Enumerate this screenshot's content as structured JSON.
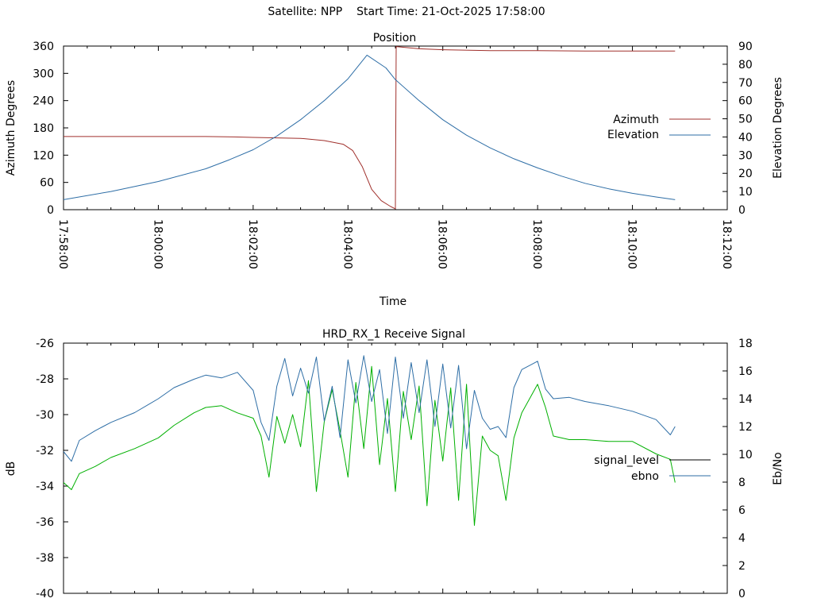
{
  "header": {
    "satellite": "Satellite: NPP",
    "start_time": "Start Time: 21-Oct-2025 17:58:00"
  },
  "colors": {
    "azimuth": "#a0302c",
    "elevation": "#2e6ea6",
    "signal_level": "#000000",
    "ebno": "#2e6ea6",
    "signal_trace": "#00b000",
    "axis": "#000000"
  },
  "chart_data": [
    {
      "type": "line",
      "title": "Position",
      "xlabel": "Time",
      "ylabel": "Azimuth Degrees",
      "y2label": "Elevation Degrees",
      "xlim": [
        "17:58:00",
        "18:12:00"
      ],
      "x_ticks": [
        "17:58:00",
        "18:00:00",
        "18:02:00",
        "18:04:00",
        "18:06:00",
        "18:08:00",
        "18:10:00",
        "18:12:00"
      ],
      "ylim": [
        0,
        360
      ],
      "y_ticks": [
        0,
        60,
        120,
        180,
        240,
        300,
        360
      ],
      "y2lim": [
        0,
        90
      ],
      "y2_ticks": [
        0,
        10,
        20,
        30,
        40,
        50,
        60,
        70,
        80,
        90
      ],
      "grid": false,
      "legend": "right",
      "series": [
        {
          "name": "Azimuth",
          "axis": "y",
          "points": [
            [
              "17:58:00",
              161
            ],
            [
              "17:59:00",
              161
            ],
            [
              "18:00:00",
              161
            ],
            [
              "18:01:00",
              161
            ],
            [
              "18:01:36",
              160
            ],
            [
              "18:02:00",
              159
            ],
            [
              "18:02:30",
              158
            ],
            [
              "18:03:00",
              157
            ],
            [
              "18:03:30",
              152
            ],
            [
              "18:03:54",
              144
            ],
            [
              "18:04:06",
              130
            ],
            [
              "18:04:18",
              95
            ],
            [
              "18:04:30",
              45
            ],
            [
              "18:04:42",
              20
            ],
            [
              "18:04:54",
              7
            ],
            [
              "18:05:00",
              2
            ],
            [
              "18:05:01",
              359
            ],
            [
              "18:05:30",
              354
            ],
            [
              "18:06:00",
              352
            ],
            [
              "18:07:00",
              350
            ],
            [
              "18:08:00",
              350
            ],
            [
              "18:09:00",
              349
            ],
            [
              "18:10:00",
              349
            ],
            [
              "18:10:54",
              349
            ]
          ]
        },
        {
          "name": "Elevation",
          "axis": "y2",
          "points": [
            [
              "17:58:00",
              5.5
            ],
            [
              "17:59:00",
              10
            ],
            [
              "18:00:00",
              15.5
            ],
            [
              "18:01:00",
              22.5
            ],
            [
              "18:01:30",
              27.5
            ],
            [
              "18:02:00",
              33
            ],
            [
              "18:02:30",
              40.5
            ],
            [
              "18:03:00",
              49.5
            ],
            [
              "18:03:30",
              60
            ],
            [
              "18:04:00",
              72
            ],
            [
              "18:04:24",
              85
            ],
            [
              "18:04:48",
              78
            ],
            [
              "18:05:00",
              71.5
            ],
            [
              "18:05:30",
              60
            ],
            [
              "18:06:00",
              49.5
            ],
            [
              "18:06:30",
              41
            ],
            [
              "18:07:00",
              34
            ],
            [
              "18:07:30",
              28
            ],
            [
              "18:08:00",
              23
            ],
            [
              "18:08:30",
              18.5
            ],
            [
              "18:09:00",
              14.5
            ],
            [
              "18:09:30",
              11.5
            ],
            [
              "18:10:00",
              9
            ],
            [
              "18:10:30",
              7
            ],
            [
              "18:10:54",
              5.5
            ]
          ]
        }
      ]
    },
    {
      "type": "line",
      "title": "HRD_RX_1 Receive Signal",
      "xlabel": "",
      "ylabel": "dB",
      "y2label": "Eb/No",
      "xlim": [
        "17:58:00",
        "18:12:00"
      ],
      "ylim": [
        -40,
        -26
      ],
      "y_ticks": [
        -40,
        -38,
        -36,
        -34,
        -32,
        -30,
        -28,
        -26
      ],
      "y2lim": [
        0,
        18
      ],
      "y2_ticks": [
        0,
        2,
        4,
        6,
        8,
        10,
        12,
        14,
        16,
        18
      ],
      "grid": false,
      "legend": "right",
      "series": [
        {
          "name": "signal_level",
          "axis": "y",
          "points": [
            [
              "17:58:00",
              -33.8
            ],
            [
              "17:58:10",
              -34.2
            ],
            [
              "17:58:20",
              -33.3
            ],
            [
              "17:58:40",
              -32.9
            ],
            [
              "17:59:00",
              -32.4
            ],
            [
              "17:59:30",
              -31.9
            ],
            [
              "18:00:00",
              -31.3
            ],
            [
              "18:00:20",
              -30.6
            ],
            [
              "18:00:45",
              -29.9
            ],
            [
              "18:01:00",
              -29.6
            ],
            [
              "18:01:20",
              -29.5
            ],
            [
              "18:01:40",
              -29.9
            ],
            [
              "18:02:00",
              -30.2
            ],
            [
              "18:02:10",
              -31.2
            ],
            [
              "18:02:20",
              -33.5
            ],
            [
              "18:02:30",
              -30.1
            ],
            [
              "18:02:40",
              -31.6
            ],
            [
              "18:02:50",
              -30.0
            ],
            [
              "18:03:00",
              -31.8
            ],
            [
              "18:03:10",
              -28.1
            ],
            [
              "18:03:20",
              -34.3
            ],
            [
              "18:03:30",
              -30.4
            ],
            [
              "18:03:40",
              -28.6
            ],
            [
              "18:03:50",
              -30.9
            ],
            [
              "18:04:00",
              -33.5
            ],
            [
              "18:04:10",
              -28.2
            ],
            [
              "18:04:20",
              -31.9
            ],
            [
              "18:04:30",
              -27.3
            ],
            [
              "18:04:40",
              -32.8
            ],
            [
              "18:04:50",
              -29.1
            ],
            [
              "18:05:00",
              -34.3
            ],
            [
              "18:05:10",
              -28.7
            ],
            [
              "18:05:20",
              -31.4
            ],
            [
              "18:05:30",
              -28.4
            ],
            [
              "18:05:40",
              -35.1
            ],
            [
              "18:05:50",
              -29.2
            ],
            [
              "18:06:00",
              -32.6
            ],
            [
              "18:06:10",
              -28.5
            ],
            [
              "18:06:20",
              -34.8
            ],
            [
              "18:06:30",
              -28.3
            ],
            [
              "18:06:40",
              -36.2
            ],
            [
              "18:06:50",
              -31.2
            ],
            [
              "18:07:00",
              -32.0
            ],
            [
              "18:07:10",
              -32.3
            ],
            [
              "18:07:20",
              -34.8
            ],
            [
              "18:07:30",
              -31.3
            ],
            [
              "18:07:40",
              -29.9
            ],
            [
              "18:08:00",
              -28.3
            ],
            [
              "18:08:10",
              -29.6
            ],
            [
              "18:08:20",
              -31.2
            ],
            [
              "18:08:40",
              -31.4
            ],
            [
              "18:09:00",
              -31.4
            ],
            [
              "18:09:30",
              -31.5
            ],
            [
              "18:10:00",
              -31.5
            ],
            [
              "18:10:30",
              -32.2
            ],
            [
              "18:10:48",
              -32.5
            ],
            [
              "18:10:54",
              -33.8
            ]
          ]
        },
        {
          "name": "ebno",
          "axis": "y2",
          "points": [
            [
              "17:58:00",
              10.2
            ],
            [
              "17:58:10",
              9.5
            ],
            [
              "17:58:20",
              11.0
            ],
            [
              "17:58:40",
              11.7
            ],
            [
              "17:59:00",
              12.3
            ],
            [
              "17:59:30",
              13.0
            ],
            [
              "18:00:00",
              14.0
            ],
            [
              "18:00:20",
              14.8
            ],
            [
              "18:00:45",
              15.4
            ],
            [
              "18:01:00",
              15.7
            ],
            [
              "18:01:20",
              15.5
            ],
            [
              "18:01:40",
              15.9
            ],
            [
              "18:02:00",
              14.6
            ],
            [
              "18:02:10",
              12.3
            ],
            [
              "18:02:20",
              11.0
            ],
            [
              "18:02:30",
              14.9
            ],
            [
              "18:02:40",
              16.9
            ],
            [
              "18:02:50",
              14.2
            ],
            [
              "18:03:00",
              16.2
            ],
            [
              "18:03:10",
              14.4
            ],
            [
              "18:03:20",
              17.0
            ],
            [
              "18:03:30",
              12.4
            ],
            [
              "18:03:40",
              14.9
            ],
            [
              "18:03:50",
              11.2
            ],
            [
              "18:04:00",
              16.8
            ],
            [
              "18:04:10",
              13.7
            ],
            [
              "18:04:20",
              17.1
            ],
            [
              "18:04:30",
              13.8
            ],
            [
              "18:04:40",
              16.1
            ],
            [
              "18:04:50",
              11.5
            ],
            [
              "18:05:00",
              17.0
            ],
            [
              "18:05:10",
              12.6
            ],
            [
              "18:05:20",
              16.6
            ],
            [
              "18:05:30",
              13.0
            ],
            [
              "18:05:40",
              16.8
            ],
            [
              "18:05:50",
              12.0
            ],
            [
              "18:06:00",
              16.5
            ],
            [
              "18:06:10",
              11.9
            ],
            [
              "18:06:20",
              16.4
            ],
            [
              "18:06:30",
              10.4
            ],
            [
              "18:06:40",
              14.6
            ],
            [
              "18:06:50",
              12.6
            ],
            [
              "18:07:00",
              11.8
            ],
            [
              "18:07:10",
              12.0
            ],
            [
              "18:07:20",
              11.2
            ],
            [
              "18:07:30",
              14.8
            ],
            [
              "18:07:40",
              16.1
            ],
            [
              "18:08:00",
              16.7
            ],
            [
              "18:08:10",
              14.7
            ],
            [
              "18:08:20",
              14.0
            ],
            [
              "18:08:40",
              14.1
            ],
            [
              "18:09:00",
              13.8
            ],
            [
              "18:09:30",
              13.5
            ],
            [
              "18:10:00",
              13.1
            ],
            [
              "18:10:30",
              12.5
            ],
            [
              "18:10:48",
              11.4
            ],
            [
              "18:10:54",
              12.0
            ]
          ]
        }
      ]
    }
  ]
}
